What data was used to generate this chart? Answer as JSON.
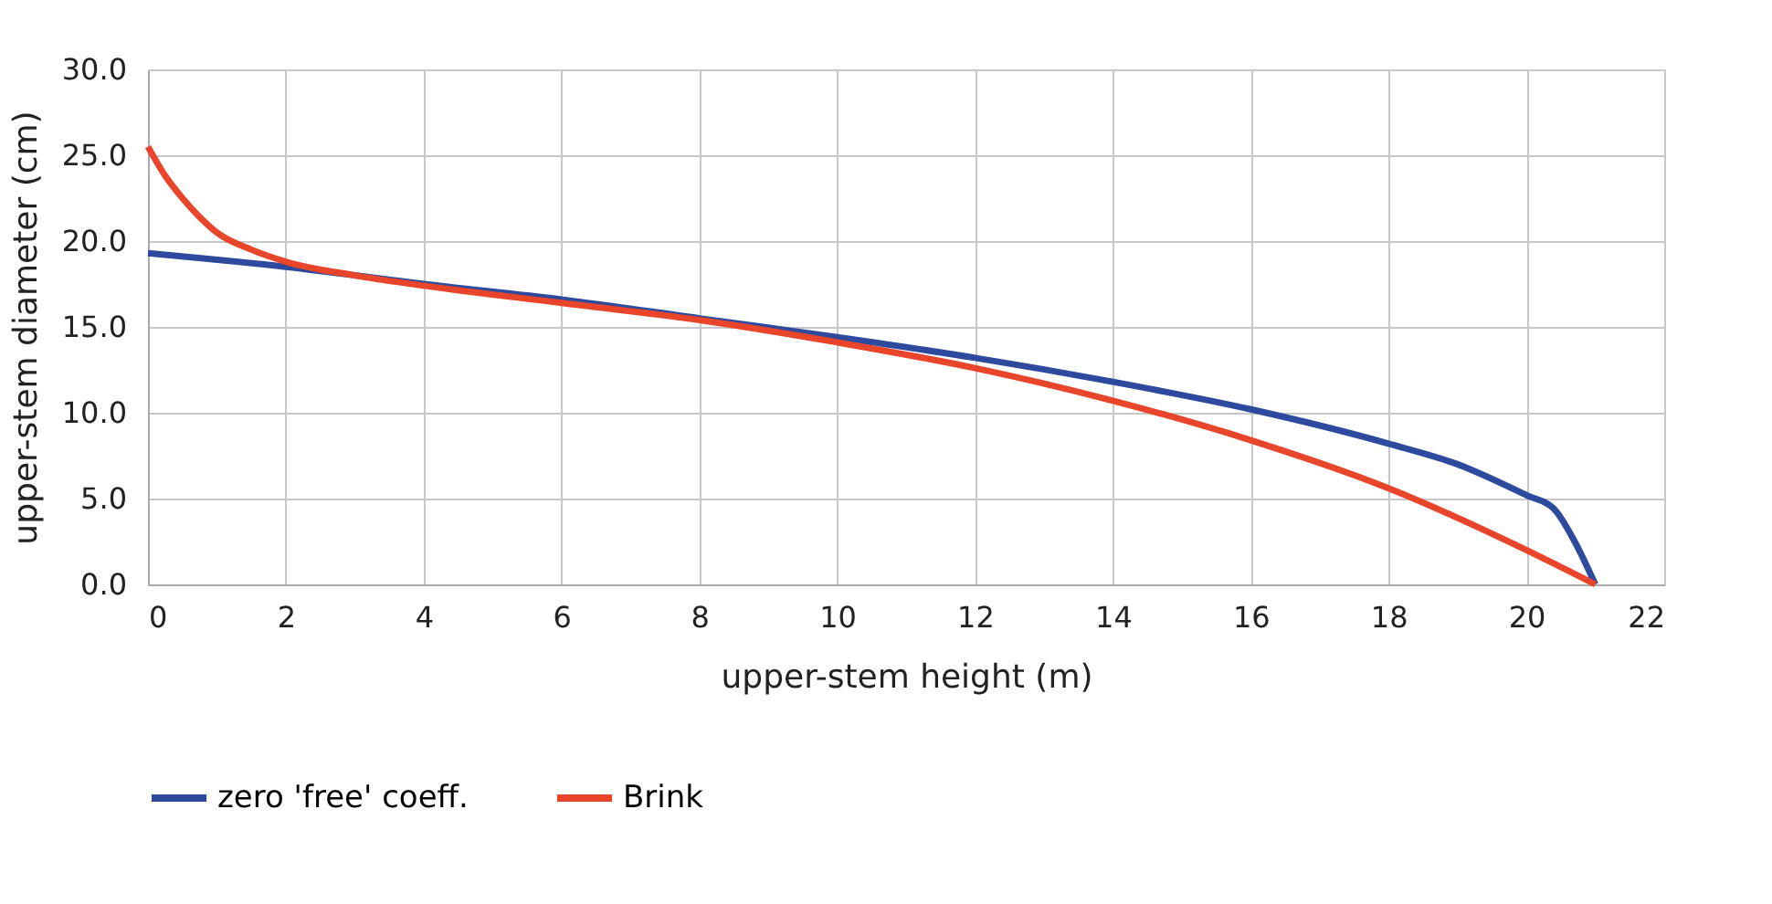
{
  "chart_data": {
    "type": "line",
    "xlabel": "upper-stem height (m)",
    "ylabel": "upper-stem diameter (cm)",
    "xlim": [
      0,
      22
    ],
    "xticks": [
      0,
      2,
      4,
      6,
      8,
      10,
      12,
      14,
      16,
      18,
      20,
      22
    ],
    "ylim": [
      0,
      30
    ],
    "yticks": [
      {
        "value": 0,
        "label": "0.0"
      },
      {
        "value": 5,
        "label": "5.0"
      },
      {
        "value": 10,
        "label": "10.0"
      },
      {
        "value": 15,
        "label": "15.0"
      },
      {
        "value": 20,
        "label": "20.0"
      },
      {
        "value": 25,
        "label": "25.0"
      },
      {
        "value": 30,
        "label": "30.0"
      }
    ],
    "grid": true,
    "legend": "bottom",
    "marker": "none",
    "line_style": "solid",
    "series": [
      {
        "name": "zero 'free' coeff.",
        "color": "#2e4a9e",
        "x": [
          0,
          2,
          4,
          6,
          8,
          10,
          12,
          14,
          16,
          18,
          19,
          20,
          20.4,
          20.7,
          21
        ],
        "values": [
          19.3,
          18.5,
          17.5,
          16.6,
          15.5,
          14.4,
          13.2,
          11.8,
          10.2,
          8.2,
          7.0,
          5.2,
          4.4,
          2.5,
          0
        ]
      },
      {
        "name": "Brink",
        "color": "#e8452a",
        "x": [
          0,
          0.25,
          0.5,
          0.75,
          1,
          1.5,
          2,
          3,
          4,
          6,
          8,
          10,
          12,
          14,
          16,
          18,
          20,
          21
        ],
        "values": [
          25.5,
          23.8,
          22.5,
          21.4,
          20.5,
          19.5,
          18.8,
          18.0,
          17.4,
          16.4,
          15.4,
          14.1,
          12.6,
          10.7,
          8.4,
          5.6,
          2.0,
          0
        ]
      }
    ]
  }
}
